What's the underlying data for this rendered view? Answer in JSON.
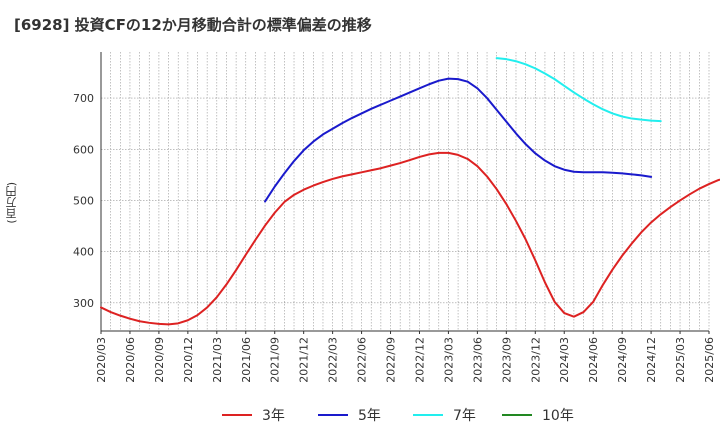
{
  "title": "[6928]  投資CFの12か月移動合計の標準偏差の推移",
  "unit_label": "(百万円)",
  "chart_data": {
    "type": "line",
    "title": "[6928]  投資CFの12か月移動合計の標準偏差の推移",
    "ylabel": "(百万円)",
    "xlabel": "",
    "ylim": [
      245,
      790
    ],
    "yticks": [
      300,
      400,
      500,
      600,
      700
    ],
    "xticks": [
      "2020/03",
      "2020/06",
      "2020/09",
      "2020/12",
      "2021/03",
      "2021/06",
      "2021/09",
      "2021/12",
      "2022/03",
      "2022/06",
      "2022/09",
      "2022/12",
      "2023/03",
      "2023/06",
      "2023/09",
      "2023/12",
      "2024/03",
      "2024/06",
      "2024/09",
      "2024/12",
      "2025/03",
      "2025/06"
    ],
    "grid": true,
    "legend_position": "bottom",
    "series": [
      {
        "name": "3年",
        "color": "#dd2222",
        "start": "2020/03",
        "values": [
          291,
          282,
          275,
          269,
          264,
          261,
          259,
          258,
          260,
          266,
          276,
          291,
          311,
          336,
          364,
          394,
          423,
          451,
          476,
          497,
          511,
          521,
          529,
          536,
          542,
          547,
          551,
          555,
          559,
          563,
          568,
          573,
          579,
          585,
          590,
          593,
          593,
          589,
          581,
          567,
          547,
          522,
          493,
          460,
          424,
          383,
          340,
          302,
          280,
          273,
          282,
          302,
          335,
          365,
          392,
          416,
          438,
          457,
          473,
          487,
          500,
          512,
          523,
          532,
          540,
          545
        ]
      },
      {
        "name": "5年",
        "color": "#1a1acc",
        "start": "2021/08",
        "values": [
          498,
          527,
          553,
          577,
          598,
          615,
          629,
          640,
          651,
          661,
          670,
          679,
          687,
          695,
          703,
          711,
          719,
          727,
          734,
          738,
          737,
          732,
          719,
          700,
          677,
          654,
          631,
          610,
          592,
          578,
          567,
          560,
          556,
          555,
          555,
          555,
          554,
          553,
          551,
          549,
          546
        ]
      },
      {
        "name": "7年",
        "color": "#22eeee",
        "start": "2023/08",
        "values": [
          778,
          776,
          772,
          766,
          758,
          748,
          737,
          724,
          711,
          699,
          688,
          678,
          670,
          664,
          660,
          658,
          656,
          655
        ]
      },
      {
        "name": "10年",
        "color": "#228822",
        "start": "2020/03",
        "values": []
      }
    ]
  }
}
